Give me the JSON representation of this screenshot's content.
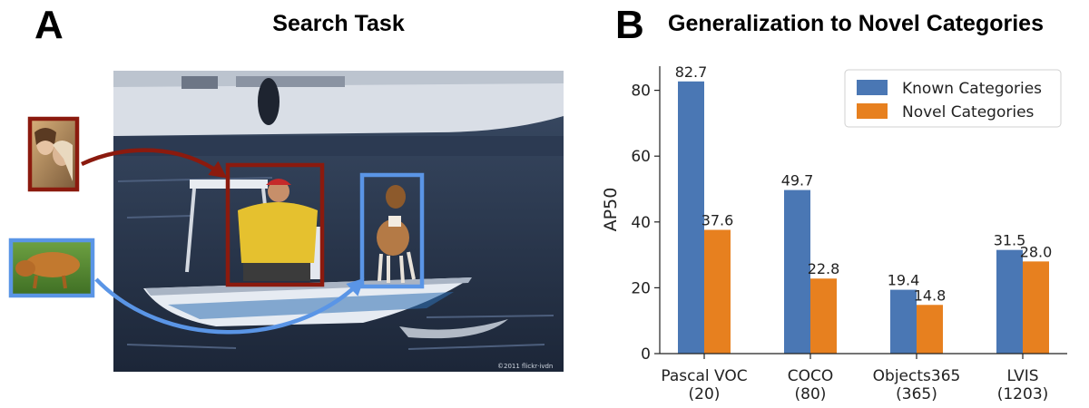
{
  "panel_a": {
    "letter": "A",
    "title": "Search Task",
    "photo_credit": "©2011 flickr·ivdn",
    "colors": {
      "person_box": "#8b1a0e",
      "dog_box": "#5a95e6"
    }
  },
  "panel_b": {
    "letter": "B",
    "title": "Generalization to Novel Categories"
  },
  "chart_data": {
    "type": "bar",
    "title": "Generalization to Novel Categories",
    "xlabel": "",
    "ylabel": "AP50",
    "ylim": [
      0,
      88
    ],
    "yticks": [
      0,
      20,
      40,
      60,
      80
    ],
    "grid": false,
    "legend_position": "top-right",
    "categories": [
      {
        "name": "Pascal VOC",
        "count": "(20)"
      },
      {
        "name": "COCO",
        "count": "(80)"
      },
      {
        "name": "Objects365",
        "count": "(365)"
      },
      {
        "name": "LVIS",
        "count": "(1203)"
      }
    ],
    "series": [
      {
        "name": "Known Categories",
        "color": "#4a77b4",
        "values": [
          82.7,
          49.7,
          19.4,
          31.5
        ],
        "labels": [
          "82.7",
          "49.7",
          "19.4",
          "31.5"
        ]
      },
      {
        "name": "Novel Categories",
        "color": "#e7801f",
        "values": [
          37.6,
          22.8,
          14.8,
          28.0
        ],
        "labels": [
          "37.6",
          "22.8",
          "14.8",
          "28.0"
        ]
      }
    ]
  }
}
